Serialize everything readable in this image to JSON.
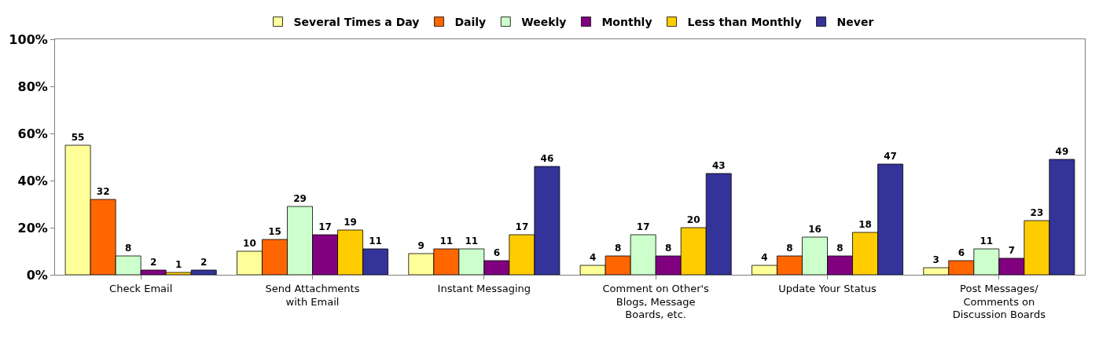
{
  "chart_data": {
    "type": "bar",
    "categories": [
      "Check Email",
      "Send Attachments\nwith Email",
      "Instant Messaging",
      "Comment on Other's\nBlogs, Message\nBoards, etc.",
      "Update Your Status",
      "Post Messages/\nComments on\nDiscussion Boards"
    ],
    "series": [
      {
        "name": "Several Times a Day",
        "color": "#ffff99",
        "values": [
          55,
          10,
          9,
          4,
          4,
          3
        ]
      },
      {
        "name": "Daily",
        "color": "#ff6600",
        "values": [
          32,
          15,
          11,
          8,
          8,
          6
        ]
      },
      {
        "name": "Weekly",
        "color": "#ccffcc",
        "values": [
          8,
          29,
          11,
          17,
          16,
          11
        ]
      },
      {
        "name": "Monthly",
        "color": "#800080",
        "values": [
          2,
          17,
          6,
          8,
          8,
          7
        ]
      },
      {
        "name": "Less than Monthly",
        "color": "#ffcc00",
        "values": [
          1,
          19,
          17,
          20,
          18,
          23
        ]
      },
      {
        "name": "Never",
        "color": "#333399",
        "values": [
          2,
          11,
          46,
          43,
          47,
          49
        ]
      }
    ],
    "ylim": [
      0,
      100
    ],
    "yticks": [
      {
        "value": 0,
        "label": "0%"
      },
      {
        "value": 20,
        "label": "20%"
      },
      {
        "value": 40,
        "label": "40%"
      },
      {
        "value": 60,
        "label": "60%"
      },
      {
        "value": 80,
        "label": "80%"
      },
      {
        "value": 100,
        "label": "100%"
      }
    ],
    "data_labels": true,
    "legend": "top"
  }
}
